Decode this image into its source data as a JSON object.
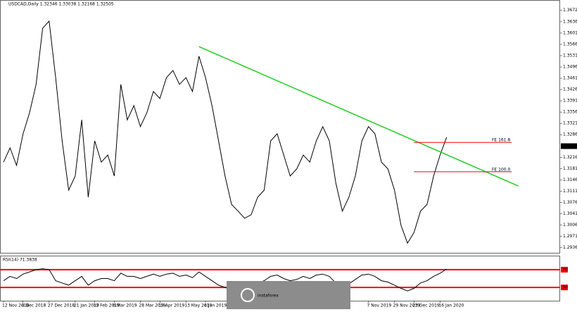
{
  "chart_data": [
    {
      "type": "line",
      "title": "USDCAD,Daily  1.32346 1.33038 1.32168 1.32505",
      "categories": [
        "12 Nov 2018",
        null,
        null,
        "4 Dec 2018",
        null,
        null,
        null,
        "27 Dec 2018",
        null,
        null,
        null,
        "21 Jan 2019",
        null,
        null,
        "12 Feb 2019",
        null,
        null,
        "6 Mar 2019",
        null,
        null,
        null,
        "28 Mar 2019",
        null,
        null,
        "19 Apr 2019",
        null,
        null,
        null,
        "13 May 2019",
        null,
        null,
        "4 Jun 2019",
        null,
        null,
        null,
        null,
        null,
        null,
        null,
        null,
        null,
        null,
        null,
        null,
        null,
        null,
        null,
        null,
        null,
        null,
        null,
        null,
        null,
        null,
        null,
        null,
        "7 Nov 2019",
        null,
        null,
        null,
        "29 Nov 2019",
        null,
        null,
        "23 Dec 2019",
        null,
        null,
        null,
        "16 Jan 2020",
        null
      ],
      "series": [
        {
          "color": "#000000",
          "values": [
            1.3201,
            1.3245,
            1.3191,
            1.3289,
            1.3354,
            1.3442,
            1.3616,
            1.3638,
            1.3463,
            1.3267,
            1.3114,
            1.3158,
            1.3332,
            1.3092,
            1.3267,
            1.3201,
            1.3223,
            1.3158,
            1.3442,
            1.3332,
            1.3376,
            1.3311,
            1.3354,
            1.342,
            1.3398,
            1.3463,
            1.3485,
            1.3442,
            1.3463,
            1.342,
            1.3529,
            1.3463,
            1.3376,
            1.3267,
            1.3158,
            1.307,
            1.3049,
            1.3027,
            1.3038,
            1.3092,
            1.3114,
            1.3267,
            1.3289,
            1.3223,
            1.3158,
            1.318,
            1.3223,
            1.3201,
            1.3267,
            1.3311,
            1.3267,
            1.3136,
            1.3049,
            1.3092,
            1.3158,
            1.3267,
            1.3311,
            1.3289,
            1.3201,
            1.318,
            1.3114,
            1.3005,
            1.295,
            1.2983,
            1.3049,
            1.307,
            1.3158,
            1.3223,
            1.3278
          ]
        }
      ],
      "ylim": [
        1.2922,
        1.3686
      ],
      "yticks": [
        {
          "value": 1.2936,
          "label": "1.29360"
        },
        {
          "value": 1.2971,
          "label": "1.29710"
        },
        {
          "value": 1.3006,
          "label": "1.30060"
        },
        {
          "value": 1.3041,
          "label": "1.30410"
        },
        {
          "value": 1.3076,
          "label": "1.30760"
        },
        {
          "value": 1.3111,
          "label": "1.31110"
        },
        {
          "value": 1.3146,
          "label": "1.31460"
        },
        {
          "value": 1.3181,
          "label": "1.31810"
        },
        {
          "value": 1.3216,
          "label": "1.32160"
        },
        {
          "value": 1.3286,
          "label": "1.32860"
        },
        {
          "value": 1.3321,
          "label": "1.33210"
        },
        {
          "value": 1.3356,
          "label": "1.33560"
        },
        {
          "value": 1.3391,
          "label": "1.33910"
        },
        {
          "value": 1.3426,
          "label": "1.34260"
        },
        {
          "value": 1.3461,
          "label": "1.34610"
        },
        {
          "value": 1.3496,
          "label": "1.34960"
        },
        {
          "value": 1.3531,
          "label": "1.35310"
        },
        {
          "value": 1.3566,
          "label": "1.35660"
        },
        {
          "value": 1.3601,
          "label": "1.36010"
        },
        {
          "value": 1.3636,
          "label": "1.36360"
        },
        {
          "value": 1.3672,
          "label": "1.36720"
        }
      ],
      "current_price": {
        "value": 1.32505,
        "label": "1.32505"
      },
      "trendline": {
        "color": "#22cc22",
        "x": [
          30,
          79
        ],
        "y": [
          1.3559,
          1.3127
        ]
      },
      "fe_levels": [
        {
          "label": "FE 161.8",
          "color": "#ff0000",
          "x": [
            63,
            78
          ],
          "y": 1.3262
        },
        {
          "label": "FE 100.0",
          "color": "#ff0000",
          "x": [
            63,
            78
          ],
          "y": 1.3171
        }
      ]
    },
    {
      "type": "line",
      "title": "RSI(14) 71.3838",
      "series": [
        {
          "color": "#000000",
          "values": [
            45,
            55,
            50,
            60,
            65,
            70,
            72,
            70,
            45,
            40,
            35,
            45,
            55,
            35,
            45,
            50,
            50,
            45,
            62,
            55,
            55,
            50,
            55,
            60,
            55,
            60,
            62,
            55,
            58,
            52,
            65,
            55,
            45,
            35,
            30,
            25,
            28,
            25,
            30,
            40,
            45,
            55,
            58,
            50,
            45,
            48,
            55,
            50,
            58,
            60,
            55,
            40,
            30,
            38,
            48,
            58,
            60,
            55,
            45,
            42,
            35,
            28,
            22,
            28,
            40,
            45,
            55,
            62,
            71.3838
          ]
        }
      ],
      "ylim": [
        0,
        100
      ],
      "yticks": [
        70,
        30
      ],
      "level_color": "#ff0000"
    }
  ],
  "watermark": "instaforex"
}
